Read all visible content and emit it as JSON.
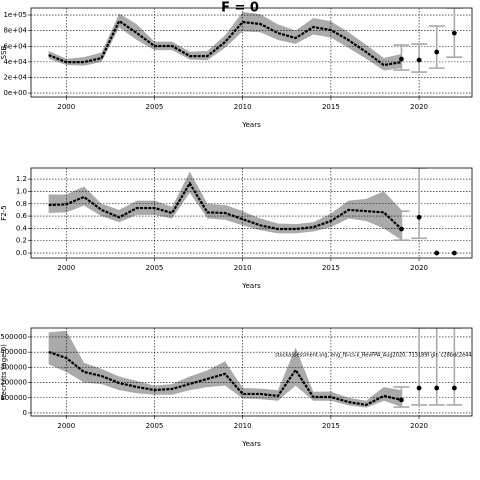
{
  "chart_data": [
    {
      "type": "line",
      "title": "F = 0",
      "ylabel": "SSB",
      "xlabel": "Years",
      "color": "#000000",
      "band_color": "#aaaaaa",
      "grid": true,
      "xlim": [
        1998,
        2023
      ],
      "xticks": [
        2000,
        2005,
        2010,
        2015,
        2020
      ],
      "ylim": [
        -5000,
        109000
      ],
      "yticks": [
        {
          "value": 0,
          "label": "0e+00"
        },
        {
          "value": 20000,
          "label": "2e+04"
        },
        {
          "value": 40000,
          "label": "4e+04"
        },
        {
          "value": 60000,
          "label": "6e+04"
        },
        {
          "value": 80000,
          "label": "8e+04"
        },
        {
          "value": 100000,
          "label": "1e+05"
        }
      ],
      "x": [
        1999,
        2000,
        2001,
        2002,
        2003,
        2004,
        2005,
        2006,
        2007,
        2008,
        2009,
        2010,
        2011,
        2012,
        2013,
        2014,
        2015,
        2016,
        2017,
        2018,
        2019
      ],
      "values": [
        48700,
        39700,
        39700,
        44900,
        92300,
        76900,
        60300,
        60300,
        47400,
        47400,
        65400,
        91000,
        88500,
        76900,
        70500,
        84600,
        80800,
        67900,
        52600,
        35900,
        39700
      ],
      "upper": [
        54000,
        44000,
        46000,
        52000,
        102000,
        88000,
        66000,
        66000,
        53000,
        54000,
        74000,
        104000,
        101000,
        88000,
        80000,
        96000,
        92000,
        78000,
        62000,
        45000,
        50000
      ],
      "lower": [
        44000,
        36000,
        35000,
        40000,
        84000,
        68000,
        55000,
        55000,
        43000,
        42000,
        58000,
        79000,
        78000,
        68000,
        63000,
        75000,
        71000,
        58000,
        44000,
        29000,
        32000
      ],
      "proj_x": [
        2019,
        2020,
        2021,
        2022
      ],
      "proj_values": [
        43600,
        42300,
        52600,
        76900
      ],
      "proj_lower": [
        29500,
        26900,
        32000,
        46000
      ],
      "proj_upper": [
        61500,
        62800,
        85900,
        109000
      ]
    },
    {
      "type": "line",
      "ylabel": "F2-5",
      "xlabel": "Years",
      "color": "#000000",
      "band_color": "#aaaaaa",
      "grid": true,
      "xlim": [
        1998,
        2023
      ],
      "xticks": [
        2000,
        2005,
        2010,
        2015,
        2020
      ],
      "ylim": [
        -0.08,
        1.38
      ],
      "yticks": [
        {
          "value": 0,
          "label": "0.0"
        },
        0.2,
        0.4,
        0.6,
        0.8,
        {
          "value": 1,
          "label": "1.0"
        },
        1.2
      ],
      "x": [
        1999,
        2000,
        2001,
        2002,
        2003,
        2004,
        2005,
        2006,
        2007,
        2008,
        2009,
        2010,
        2011,
        2012,
        2013,
        2014,
        2015,
        2016,
        2017,
        2018,
        2019
      ],
      "values": [
        0.78,
        0.79,
        0.91,
        0.7,
        0.58,
        0.73,
        0.73,
        0.65,
        1.13,
        0.66,
        0.65,
        0.55,
        0.45,
        0.39,
        0.39,
        0.42,
        0.52,
        0.7,
        0.68,
        0.66,
        0.39
      ],
      "upper": [
        0.95,
        0.95,
        1.08,
        0.8,
        0.7,
        0.85,
        0.85,
        0.75,
        1.32,
        0.8,
        0.78,
        0.68,
        0.56,
        0.48,
        0.47,
        0.5,
        0.64,
        0.85,
        0.88,
        1.0,
        0.7
      ],
      "lower": [
        0.65,
        0.66,
        0.77,
        0.6,
        0.5,
        0.62,
        0.62,
        0.56,
        0.98,
        0.56,
        0.54,
        0.45,
        0.37,
        0.32,
        0.32,
        0.35,
        0.42,
        0.56,
        0.52,
        0.4,
        0.21
      ],
      "proj_x": [
        2019,
        2020,
        2021,
        2022
      ],
      "proj_values": [
        0.39,
        0.58,
        0,
        0
      ],
      "proj_lower": [
        0.21,
        0.24,
        0,
        0
      ],
      "proj_upper": [
        0.68,
        1.38,
        0,
        0
      ]
    },
    {
      "type": "line",
      "ylabel": "Recruits (age 0)",
      "xlabel": "Years",
      "annotation": "stockassessment.org, eng_fb-cs-k_RevFPA_Aug2020, 713189f git: c28bdc2e44e",
      "color": "#000000",
      "band_color": "#aaaaaa",
      "grid": true,
      "xlim": [
        1998,
        2023
      ],
      "xticks": [
        2000,
        2005,
        2010,
        2015,
        2020
      ],
      "ylim": [
        -20000,
        559000
      ],
      "yticks": [
        0,
        100000,
        200000,
        300000,
        400000,
        500000
      ],
      "x": [
        1999,
        2000,
        2001,
        2002,
        2003,
        2004,
        2005,
        2006,
        2007,
        2008,
        2009,
        2010,
        2011,
        2012,
        2013,
        2014,
        2015,
        2016,
        2017,
        2018,
        2019
      ],
      "values": [
        401000,
        362000,
        270000,
        243000,
        197000,
        171000,
        151000,
        158000,
        191000,
        224000,
        257000,
        125000,
        125000,
        112000,
        283000,
        105000,
        105000,
        72000,
        53000,
        112000,
        86000
      ],
      "upper": [
        530000,
        540000,
        330000,
        290000,
        240000,
        210000,
        180000,
        190000,
        240000,
        280000,
        340000,
        165000,
        160000,
        150000,
        430000,
        140000,
        140000,
        100000,
        80000,
        170000,
        150000
      ],
      "lower": [
        320000,
        270000,
        200000,
        190000,
        150000,
        130000,
        120000,
        120000,
        150000,
        170000,
        180000,
        95000,
        90000,
        80000,
        180000,
        80000,
        80000,
        50000,
        35000,
        80000,
        40000
      ],
      "proj_x": [
        2019,
        2020,
        2021,
        2022
      ],
      "proj_values": [
        86000,
        164000,
        164000,
        164000
      ],
      "proj_lower": [
        39000,
        53000,
        53000,
        53000
      ],
      "proj_upper": [
        171000,
        559000,
        559000,
        559000
      ]
    }
  ]
}
